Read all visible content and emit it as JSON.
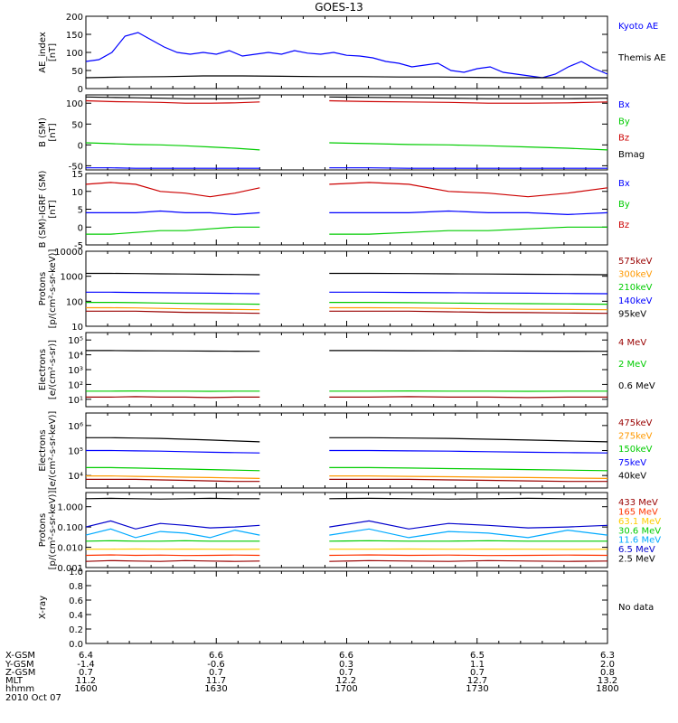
{
  "title": "GOES-13",
  "chart_data": [
    {
      "type": "line",
      "ylabel": "AE_index\n[nT]",
      "ylim": [
        0,
        200
      ],
      "yticks": [
        "0",
        "50",
        "100",
        "150",
        "200"
      ],
      "x_range": [
        "1600",
        "1800"
      ],
      "series": [
        {
          "name": "Kyoto AE",
          "color": "#0000ff",
          "x": [
            1600,
            1605,
            1610,
            1615,
            1620,
            1625,
            1630,
            1635,
            1640,
            1645,
            1650,
            1655,
            1660,
            1665,
            1670,
            1675,
            1680,
            1685,
            1690,
            1695,
            1700,
            1705,
            1710,
            1715,
            1720,
            1725,
            1730,
            1735,
            1740,
            1745,
            1750,
            1755,
            1760,
            1765,
            1770,
            1775,
            1780,
            1785,
            1790,
            1795,
            1800
          ],
          "values": [
            75,
            80,
            100,
            145,
            155,
            135,
            115,
            100,
            95,
            100,
            95,
            105,
            90,
            95,
            100,
            95,
            105,
            98,
            95,
            100,
            92,
            90,
            85,
            75,
            70,
            60,
            65,
            70,
            50,
            45,
            55,
            60,
            45,
            40,
            35,
            30,
            40,
            60,
            75,
            55,
            40
          ]
        },
        {
          "name": "Themis AE",
          "color": "#000000",
          "x": [
            1600,
            1615,
            1630,
            1645,
            1660,
            1675,
            1690,
            1705,
            1720,
            1735,
            1750,
            1765,
            1780,
            1800
          ],
          "values": [
            30,
            32,
            33,
            35,
            35,
            34,
            33,
            33,
            32,
            32,
            31,
            30,
            30,
            30
          ]
        }
      ]
    },
    {
      "type": "line",
      "ylabel": "B (SM)\n[nT]",
      "ylim": [
        -60,
        120
      ],
      "yticks": [
        "-50",
        "0",
        "50",
        "100"
      ],
      "gap": [
        "1640",
        "1656"
      ],
      "series": [
        {
          "name": "Bx",
          "color": "#0000ff",
          "values": [
            -55,
            -55,
            -56,
            -56,
            -56,
            -56,
            -56,
            -56
          ]
        },
        {
          "name": "By",
          "color": "#00cc00",
          "values": [
            5,
            3,
            1,
            0,
            -2,
            -5,
            -8,
            -12
          ]
        },
        {
          "name": "Bz",
          "color": "#cc0000",
          "values": [
            106,
            104,
            103,
            102,
            100,
            100,
            101,
            103
          ]
        },
        {
          "name": "Bmag",
          "color": "#000000",
          "values": [
            115,
            114,
            113,
            112,
            111,
            111,
            111,
            112
          ]
        }
      ]
    },
    {
      "type": "line",
      "ylabel": "B (SM)-IGRF (SM)\n[nT]",
      "ylim": [
        -5,
        15
      ],
      "yticks": [
        "-5",
        "0",
        "5",
        "10",
        "15"
      ],
      "gap": [
        "1640",
        "1656"
      ],
      "series": [
        {
          "name": "Bx",
          "color": "#0000ff",
          "values": [
            4,
            4,
            4,
            4.5,
            4,
            4,
            3.5,
            4
          ]
        },
        {
          "name": "By",
          "color": "#00cc00",
          "values": [
            -2,
            -2,
            -1.5,
            -1,
            -1,
            -0.5,
            0,
            0
          ]
        },
        {
          "name": "Bz",
          "color": "#cc0000",
          "values": [
            12,
            12.5,
            12,
            10,
            9.5,
            8.5,
            9.5,
            11
          ]
        }
      ]
    },
    {
      "type": "line",
      "ylabel": "Protons\n[p/(cm²-s-sr-keV)]",
      "log": true,
      "ylim": [
        10,
        10000
      ],
      "yticks": [
        "10",
        "100",
        "1000",
        "10000"
      ],
      "gap": [
        "1640",
        "1656"
      ],
      "series": [
        {
          "name": "575keV",
          "color": "#990000",
          "values": [
            40,
            40,
            40,
            38,
            36,
            35,
            34,
            33
          ]
        },
        {
          "name": "300keV",
          "color": "#ff9900",
          "values": [
            55,
            55,
            54,
            52,
            50,
            48,
            47,
            46
          ]
        },
        {
          "name": "210keV",
          "color": "#00cc00",
          "values": [
            90,
            90,
            88,
            85,
            82,
            80,
            78,
            76
          ]
        },
        {
          "name": "140keV",
          "color": "#0000ff",
          "values": [
            230,
            230,
            225,
            220,
            215,
            210,
            205,
            200
          ]
        },
        {
          "name": "95keV",
          "color": "#000000",
          "values": [
            1300,
            1300,
            1280,
            1250,
            1230,
            1200,
            1180,
            1150
          ]
        }
      ]
    },
    {
      "type": "line",
      "ylabel": "Electrons\n[e/(cm²-s-sr)]",
      "log": true,
      "ylim": [
        5,
        100000
      ],
      "yticks": [
        "10¹",
        "10²",
        "10³",
        "10⁴",
        "10⁵"
      ],
      "gap": [
        "1640",
        "1656"
      ],
      "series": [
        {
          "name": "4 MeV",
          "color": "#990000",
          "values": [
            18,
            18,
            19,
            18,
            18,
            17,
            18,
            18
          ]
        },
        {
          "name": "2 MeV",
          "color": "#00cc00",
          "values": [
            40,
            40,
            41,
            40,
            40,
            39,
            40,
            40
          ]
        },
        {
          "name": "0.6 MeV",
          "color": "#000000",
          "values": [
            9000,
            9000,
            8800,
            8700,
            8600,
            8400,
            8300,
            8200
          ]
        }
      ]
    },
    {
      "type": "line",
      "ylabel": "Electrons\n[e/(cm²-s-sr-keV)]",
      "log": true,
      "ylim": [
        10000,
        1000000
      ],
      "yticks": [
        "10⁴",
        "10⁵",
        "10⁶"
      ],
      "gap": [
        "1640",
        "1656"
      ],
      "series": [
        {
          "name": "475keV",
          "color": "#990000",
          "values": [
            17000,
            17000,
            17000,
            16500,
            16000,
            15500,
            15000,
            15000
          ]
        },
        {
          "name": "275keV",
          "color": "#ff9900",
          "values": [
            21000,
            21000,
            20500,
            20000,
            19500,
            19000,
            18500,
            18000
          ]
        },
        {
          "name": "150keV",
          "color": "#00cc00",
          "values": [
            35000,
            35000,
            34000,
            33000,
            32000,
            31000,
            30000,
            29000
          ]
        },
        {
          "name": "75keV",
          "color": "#0000ff",
          "values": [
            100000,
            100000,
            98000,
            96000,
            93000,
            90000,
            88000,
            86000
          ]
        },
        {
          "name": "40keV",
          "color": "#000000",
          "values": [
            220000,
            220000,
            215000,
            210000,
            200000,
            190000,
            180000,
            170000
          ]
        }
      ]
    },
    {
      "type": "line",
      "ylabel": "Protons\n[p/(cm²-s-sr-keV)]",
      "log": true,
      "ylim": [
        0.001,
        5
      ],
      "yticks": [
        "0.001",
        "0.010",
        "0.100",
        "1.000"
      ],
      "gap": [
        "1640",
        "1656"
      ],
      "series": [
        {
          "name": "433 MeV",
          "color": "#990000",
          "values": [
            0.002,
            0.0022,
            0.0021,
            0.002,
            0.0022,
            0.0021,
            0.002,
            0.0021
          ]
        },
        {
          "name": "165 MeV",
          "color": "#ff3300",
          "values": [
            0.004,
            0.0042,
            0.004,
            0.0041,
            0.0039,
            0.004,
            0.0041,
            0.004
          ]
        },
        {
          "name": "63.1 MeV",
          "color": "#ffcc00",
          "values": [
            0.008,
            0.008,
            0.0082,
            0.008,
            0.0081,
            0.008,
            0.0079,
            0.008
          ]
        },
        {
          "name": "30.6 MeV",
          "color": "#00cc00",
          "values": [
            0.02,
            0.021,
            0.02,
            0.02,
            0.021,
            0.02,
            0.02,
            0.02
          ]
        },
        {
          "name": "11.6 MeV",
          "color": "#00aaff",
          "values": [
            0.04,
            0.08,
            0.03,
            0.06,
            0.05,
            0.03,
            0.07,
            0.04
          ]
        },
        {
          "name": "6.5 MeV",
          "color": "#0000cc",
          "values": [
            0.1,
            0.2,
            0.08,
            0.15,
            0.12,
            0.09,
            0.1,
            0.12
          ]
        },
        {
          "name": "2.5 MeV",
          "color": "#000000",
          "values": [
            2.5,
            2.6,
            2.5,
            2.4,
            2.5,
            2.6,
            2.5,
            2.5
          ]
        }
      ]
    },
    {
      "type": "line",
      "ylabel": "X-ray",
      "ylim": [
        0,
        1
      ],
      "yticks": [
        "0.0",
        "0.2",
        "0.4",
        "0.6",
        "0.8",
        "1.0"
      ],
      "series": [],
      "note": "No data"
    }
  ],
  "ephemeris": {
    "row_labels": [
      "X-GSM",
      "Y-GSM",
      "Z-GSM",
      "MLT",
      "hhmm"
    ],
    "date": "2010 Oct 07",
    "columns": [
      {
        "values": [
          "6.4",
          "-1.4",
          "0.7",
          "11.2",
          "1600"
        ]
      },
      {
        "values": [
          "6.6",
          "-0.6",
          "0.7",
          "11.7",
          "1630"
        ]
      },
      {
        "values": [
          "6.6",
          "0.3",
          "0.7",
          "12.2",
          "1700"
        ]
      },
      {
        "values": [
          "6.5",
          "1.1",
          "0.7",
          "12.7",
          "1730"
        ]
      },
      {
        "values": [
          "6.3",
          "2.0",
          "0.8",
          "13.2",
          "1800"
        ]
      }
    ]
  }
}
